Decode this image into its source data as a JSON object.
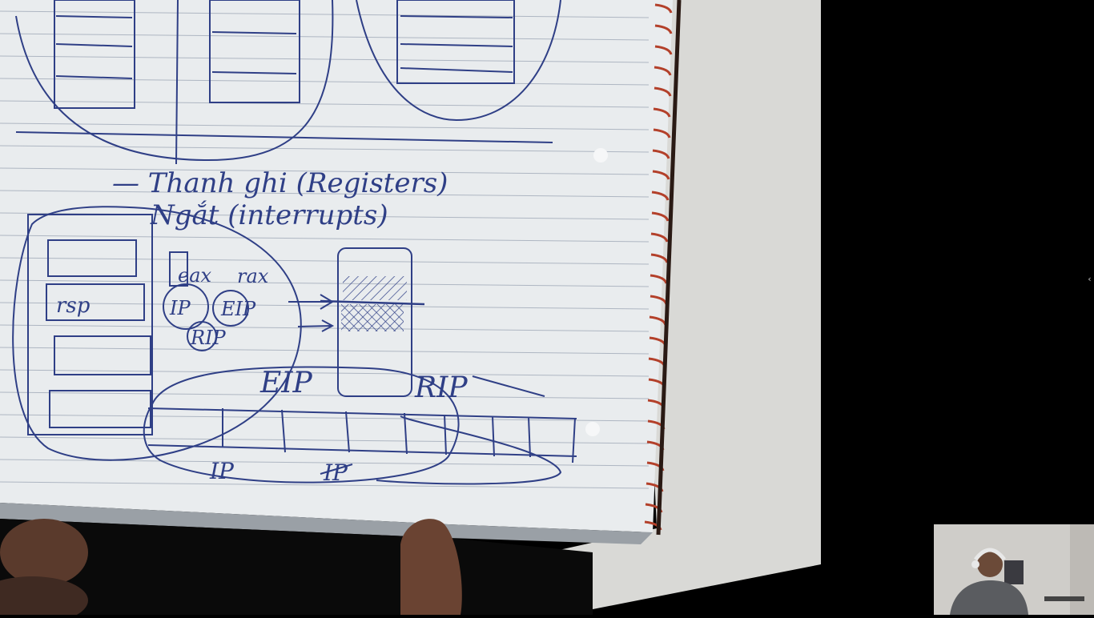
{
  "video": {
    "notebook": {
      "heading_line1": "— Thanh ghi (Registers)",
      "heading_line2": "Ngắt (interrupts)",
      "stack_label": "rsp",
      "reg_eax": "eax",
      "reg_rax": "rax",
      "reg_ip": "IP",
      "reg_eip": "EIP",
      "reg_rip": "RIP",
      "label_eip_big": "EIP",
      "label_rip_big": "RIP",
      "label_ip_bottom": "IP",
      "label_ip_crossed": "IP"
    }
  },
  "player": {
    "side_panel_toggle": "‹"
  },
  "colors": {
    "paper": "#e9ecee",
    "ink": "#2f3f86",
    "spiral": "#b3402a",
    "background": "#000000"
  }
}
